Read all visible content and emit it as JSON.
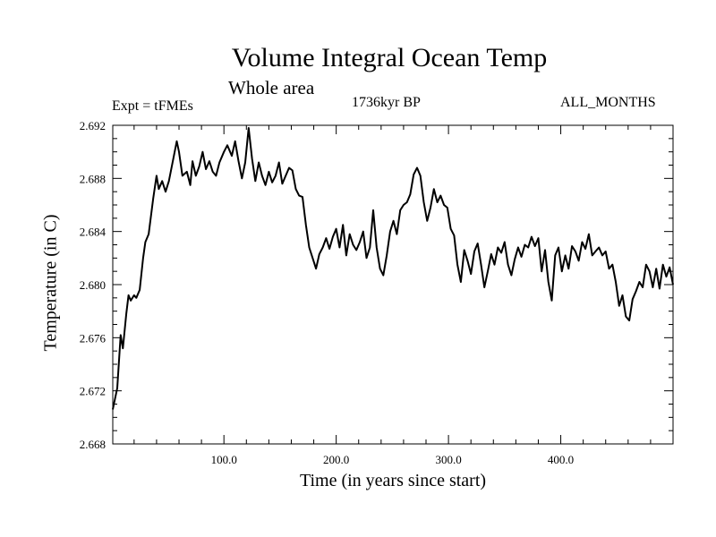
{
  "chart_data": {
    "type": "line",
    "title": "Volume Integral Ocean Temp",
    "subtitle": "Whole area",
    "annotations": {
      "experiment": "Expt = tFMEs",
      "period": "1736kyr BP",
      "months": "ALL_MONTHS"
    },
    "xlabel": "Time (in years since start)",
    "ylabel": "Temperature (in C)",
    "xlim": [
      1,
      500
    ],
    "ylim": [
      2.668,
      2.692
    ],
    "xticks": [
      {
        "value": 100,
        "label": "100.0"
      },
      {
        "value": 200,
        "label": "200.0"
      },
      {
        "value": 300,
        "label": "300.0"
      },
      {
        "value": 400,
        "label": "400.0"
      }
    ],
    "yticks": [
      {
        "value": 2.668,
        "label": "2.668"
      },
      {
        "value": 2.672,
        "label": "2.672"
      },
      {
        "value": 2.676,
        "label": "2.676"
      },
      {
        "value": 2.68,
        "label": "2.680"
      },
      {
        "value": 2.684,
        "label": "2.684"
      },
      {
        "value": 2.688,
        "label": "2.688"
      },
      {
        "value": 2.692,
        "label": "2.692"
      }
    ],
    "grid": false,
    "series": [
      {
        "name": "Volume Integral Ocean Temp",
        "x": [
          1,
          5,
          8,
          10,
          13,
          15,
          17,
          20,
          22,
          25,
          28,
          30,
          33,
          37,
          40,
          42,
          45,
          48,
          51,
          55,
          58,
          60,
          63,
          67,
          70,
          72,
          75,
          78,
          81,
          84,
          87,
          90,
          93,
          96,
          100,
          103,
          107,
          110,
          113,
          116,
          119,
          122,
          125,
          128,
          131,
          134,
          137,
          140,
          143,
          146,
          149,
          152,
          155,
          158,
          161,
          164,
          167,
          170,
          173,
          176,
          179,
          182,
          185,
          188,
          191,
          194,
          197,
          200,
          203,
          206,
          209,
          212,
          215,
          218,
          221,
          224,
          227,
          230,
          233,
          236,
          239,
          242,
          245,
          248,
          251,
          254,
          257,
          260,
          263,
          266,
          269,
          272,
          275,
          278,
          281,
          284,
          287,
          290,
          293,
          296,
          299,
          302,
          305,
          308,
          311,
          314,
          317,
          320,
          323,
          326,
          329,
          332,
          335,
          338,
          341,
          344,
          347,
          350,
          353,
          356,
          359,
          362,
          365,
          368,
          371,
          374,
          377,
          380,
          383,
          386,
          389,
          392,
          395,
          398,
          401,
          404,
          407,
          410,
          413,
          416,
          419,
          422,
          425,
          428,
          431,
          434,
          437,
          440,
          443,
          446,
          449,
          452,
          455,
          458,
          461,
          464,
          467,
          470,
          473,
          476,
          479,
          482,
          485,
          488,
          491,
          494,
          497,
          500
        ],
        "values": [
          2.6706,
          2.6722,
          2.6762,
          2.6752,
          2.6778,
          2.6792,
          2.6788,
          2.6792,
          2.679,
          2.6796,
          2.682,
          2.6832,
          2.6838,
          2.6865,
          2.6882,
          2.6872,
          2.6878,
          2.687,
          2.6878,
          2.6895,
          2.6908,
          2.69,
          2.6882,
          2.6885,
          2.6875,
          2.6893,
          2.6882,
          2.6889,
          2.69,
          2.6887,
          2.6893,
          2.6885,
          2.6882,
          2.6892,
          2.69,
          2.6905,
          2.6897,
          2.6908,
          2.6893,
          2.688,
          2.6892,
          2.6918,
          2.6895,
          2.6878,
          2.6892,
          2.6882,
          2.6875,
          2.6885,
          2.6877,
          2.6882,
          2.6892,
          2.6876,
          2.6882,
          2.6888,
          2.6886,
          2.6872,
          2.6867,
          2.6866,
          2.6845,
          2.6828,
          2.682,
          2.6812,
          2.6823,
          2.6828,
          2.6835,
          2.6827,
          2.6836,
          2.6842,
          2.6828,
          2.6845,
          2.6822,
          2.6838,
          2.683,
          2.6826,
          2.6832,
          2.684,
          2.682,
          2.6828,
          2.6856,
          2.6828,
          2.6812,
          2.6807,
          2.6822,
          2.684,
          2.6848,
          2.6838,
          2.6856,
          2.686,
          2.6862,
          2.6868,
          2.6883,
          2.6888,
          2.6882,
          2.6862,
          2.6848,
          2.6858,
          2.6872,
          2.6862,
          2.6867,
          2.686,
          2.6858,
          2.6842,
          2.6837,
          2.6815,
          2.6802,
          2.6826,
          2.6818,
          2.6808,
          2.6825,
          2.6831,
          2.6815,
          2.6798,
          2.681,
          2.6823,
          2.6815,
          2.6828,
          2.6824,
          2.6832,
          2.6815,
          2.6807,
          2.6819,
          2.6828,
          2.6821,
          2.683,
          2.6828,
          2.6836,
          2.6829,
          2.6835,
          2.681,
          2.6826,
          2.6802,
          2.6788,
          2.6822,
          2.6828,
          2.681,
          2.6822,
          2.6812,
          2.6829,
          2.6825,
          2.6818,
          2.6832,
          2.6827,
          2.6838,
          2.6822,
          2.6825,
          2.6828,
          2.6822,
          2.6825,
          2.6812,
          2.6815,
          2.6802,
          2.6784,
          2.6792,
          2.6776,
          2.6773,
          2.6789,
          2.6795,
          2.6802,
          2.6798,
          2.6815,
          2.681,
          2.6798,
          2.6812,
          2.6797,
          2.6815,
          2.6806,
          2.6813,
          2.68
        ]
      }
    ]
  }
}
